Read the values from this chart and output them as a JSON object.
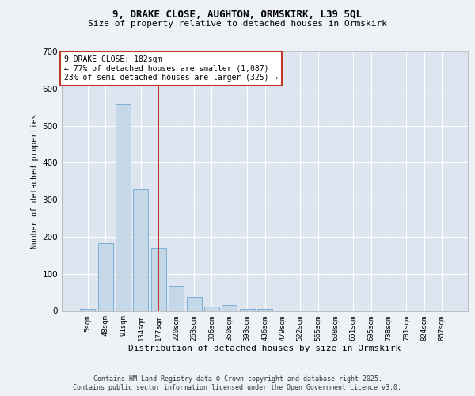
{
  "title_line1": "9, DRAKE CLOSE, AUGHTON, ORMSKIRK, L39 5QL",
  "title_line2": "Size of property relative to detached houses in Ormskirk",
  "xlabel": "Distribution of detached houses by size in Ormskirk",
  "ylabel": "Number of detached properties",
  "categories": [
    "5sqm",
    "48sqm",
    "91sqm",
    "134sqm",
    "177sqm",
    "220sqm",
    "263sqm",
    "306sqm",
    "350sqm",
    "393sqm",
    "436sqm",
    "479sqm",
    "522sqm",
    "565sqm",
    "608sqm",
    "651sqm",
    "695sqm",
    "738sqm",
    "781sqm",
    "824sqm",
    "867sqm"
  ],
  "values": [
    5,
    183,
    558,
    328,
    170,
    68,
    38,
    12,
    15,
    5,
    6,
    0,
    0,
    0,
    0,
    0,
    0,
    0,
    0,
    0,
    0
  ],
  "bar_color": "#c5d8e8",
  "bar_edge_color": "#7bafd4",
  "marker_bar_index": 4,
  "marker_color": "#c0392b",
  "annotation_text": "9 DRAKE CLOSE: 182sqm\n← 77% of detached houses are smaller (1,087)\n23% of semi-detached houses are larger (325) →",
  "annotation_box_color": "#c0392b",
  "ylim": [
    0,
    700
  ],
  "yticks": [
    0,
    100,
    200,
    300,
    400,
    500,
    600,
    700
  ],
  "footer_text": "Contains HM Land Registry data © Crown copyright and database right 2025.\nContains public sector information licensed under the Open Government Licence v3.0.",
  "bg_color": "#eef2f7",
  "plot_bg_color": "#dde6f0",
  "grid_color": "#ffffff"
}
